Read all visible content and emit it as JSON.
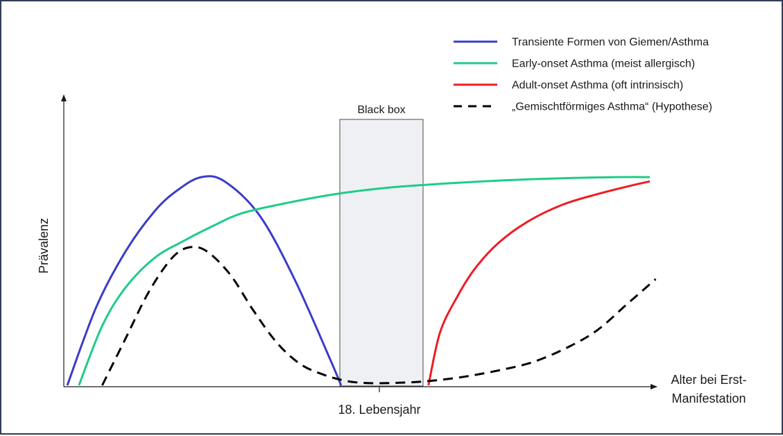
{
  "chart_data": {
    "type": "line",
    "title": "",
    "ylabel": "Prävalenz",
    "xlabel_lines": [
      "Alter bei Erst-",
      "Manifestation"
    ],
    "x_tick_label": "18. Lebensjahr",
    "black_box_label": "Black box",
    "xlim": [
      0,
      100
    ],
    "ylim": [
      0,
      100
    ],
    "legend_position": "top-right",
    "series": [
      {
        "name": "Transiente Formen von Giemen/Asthma",
        "color": "#3b3bc8",
        "dash": false,
        "x": [
          0,
          5,
          10,
          15,
          19,
          23,
          27,
          33,
          39,
          45,
          47
        ],
        "y": [
          0,
          37,
          63,
          82,
          92,
          98,
          96,
          80,
          50,
          13,
          0
        ]
      },
      {
        "name": "Early-onset Asthma (meist allergisch)",
        "color": "#1ecc88",
        "dash": false,
        "x": [
          2,
          6,
          10,
          15,
          20,
          25,
          30,
          38,
          46,
          55,
          65,
          75,
          85,
          95,
          100
        ],
        "y": [
          0,
          28,
          46,
          60,
          68,
          75,
          81,
          86,
          90,
          93,
          95,
          96.5,
          97.5,
          98,
          98
        ]
      },
      {
        "name": "Adult-onset Asthma (oft intrinsisch)",
        "color": "#ee1c23",
        "dash": false,
        "x": [
          62,
          64,
          67,
          70,
          74,
          79,
          85,
          91,
          96,
          100
        ],
        "y": [
          0,
          25,
          42,
          55,
          67,
          77,
          85,
          90,
          93.5,
          96
        ]
      },
      {
        "name": "„Gemischtförmiges Asthma“ (Hypothese)",
        "color": "#000000",
        "dash": true,
        "x": [
          6,
          10,
          14,
          18,
          21,
          24,
          28,
          32,
          36,
          40,
          44,
          48,
          52,
          57,
          62,
          68,
          74,
          80,
          86,
          91,
          96,
          101
        ],
        "y": [
          0,
          22,
          44,
          60,
          65,
          63,
          52,
          35,
          20,
          10,
          5,
          2,
          1,
          1.2,
          2,
          4,
          7,
          11,
          18,
          26,
          38,
          50
        ]
      }
    ]
  }
}
